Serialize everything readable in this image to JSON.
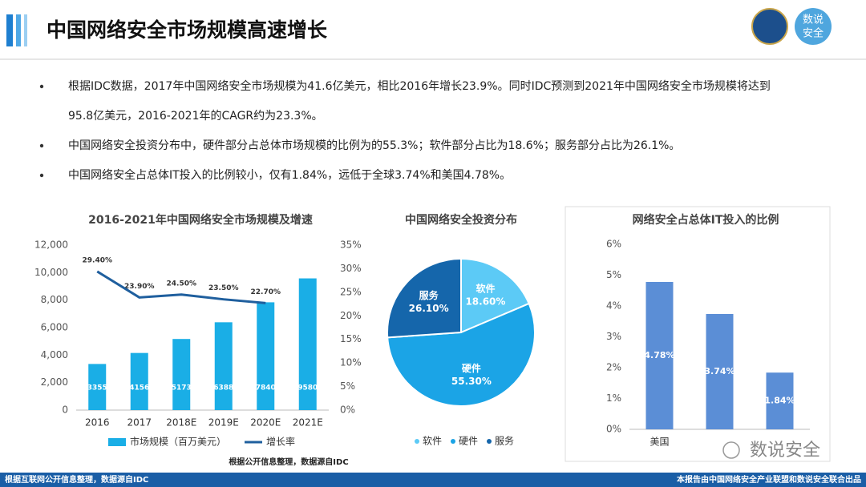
{
  "title": "中国网络安全市场规模高速增长",
  "logo_text": [
    "数说",
    "安全"
  ],
  "bullets": [
    [
      "根据IDC数据，2017年中国网络安全市场规模为41.6亿美元，相比2016年增长23.9%。同时IDC预测到2021年中国网络安全市场规模将达到",
      "95.8亿美元，2016-2021年的CAGR约为23.3%。"
    ],
    [
      "中国网络安全投资分布中，硬件部分占总体市场规模的比例为的55.3%；软件部分占比为18.6%；服务部分占比为26.1%。"
    ],
    [
      "中国网络安全占总体IT投入的比例较小，仅有1.84%，远低于全球3.74%和美国4.78%。"
    ]
  ],
  "source_note": "根据公开信息整理，数据源自IDC",
  "watermark": "数说安全",
  "footer_left": "根据互联网公开信息整理，数据源自IDC",
  "footer_right": "本报告由中国网络安全产业联盟和数说安全联合出品",
  "chart_data": [
    {
      "type": "bar",
      "title": "2016-2021年中国网络安全市场规模及增速",
      "categories": [
        "2016",
        "2017",
        "2018E",
        "2019E",
        "2020E",
        "2021E"
      ],
      "series": [
        {
          "name": "市场规模（百万美元）",
          "color": "#1aaee6",
          "values": [
            3355,
            4156,
            5173,
            6388,
            7840,
            9580
          ]
        },
        {
          "name": "增长率",
          "type": "line",
          "axis": "y2",
          "color": "#1f5f9e",
          "values": [
            29.4,
            23.9,
            24.5,
            23.5,
            22.7,
            null
          ],
          "value_labels": [
            "29.40%",
            "23.90%",
            "24.50%",
            "23.50%",
            "22.70%",
            null
          ]
        }
      ],
      "ylim": [
        0,
        12000
      ],
      "yticks": [
        0,
        {
          "value": 2000,
          "label": "2,000"
        },
        {
          "value": 4000,
          "label": "4,000"
        },
        {
          "value": 6000,
          "label": "6,000"
        },
        {
          "value": 8000,
          "label": "8,000"
        },
        {
          "value": 10000,
          "label": "10,000"
        },
        {
          "value": 12000,
          "label": "12,000"
        }
      ],
      "y2lim": [
        0,
        35
      ],
      "y2ticks": [
        {
          "value": 0,
          "label": "0%"
        },
        {
          "value": 5,
          "label": "5%"
        },
        {
          "value": 10,
          "label": "10%"
        },
        {
          "value": 15,
          "label": "15%"
        },
        {
          "value": 20,
          "label": "20%"
        },
        {
          "value": 25,
          "label": "25%"
        },
        {
          "value": 30,
          "label": "30%"
        },
        {
          "value": 35,
          "label": "35%"
        }
      ],
      "legend": "bottom"
    },
    {
      "type": "pie",
      "title": "中国网络安全投资分布",
      "categories": [
        "软件",
        "硬件",
        "服务"
      ],
      "values": [
        18.6,
        55.3,
        26.1
      ],
      "value_labels": [
        "18.60%",
        "55.30%",
        "26.10%"
      ],
      "colors": [
        "#5ccaf6",
        "#1ba4e6",
        "#1566ab"
      ],
      "legend": "bottom"
    },
    {
      "type": "bar",
      "title": "网络安全占总体IT投入的比例",
      "categories": [
        "美国",
        null,
        null
      ],
      "values": [
        4.78,
        3.74,
        1.84
      ],
      "value_labels": [
        "4.78%",
        "3.74%",
        "1.84%"
      ],
      "color": "#5b8ed6",
      "ylim": [
        0,
        6
      ],
      "yticks": [
        {
          "value": 0,
          "label": "0%"
        },
        {
          "value": 1,
          "label": "1%"
        },
        {
          "value": 2,
          "label": "2%"
        },
        {
          "value": 3,
          "label": "3%"
        },
        {
          "value": 4,
          "label": "4%"
        },
        {
          "value": 5,
          "label": "5%"
        },
        {
          "value": 6,
          "label": "6%"
        }
      ]
    }
  ]
}
